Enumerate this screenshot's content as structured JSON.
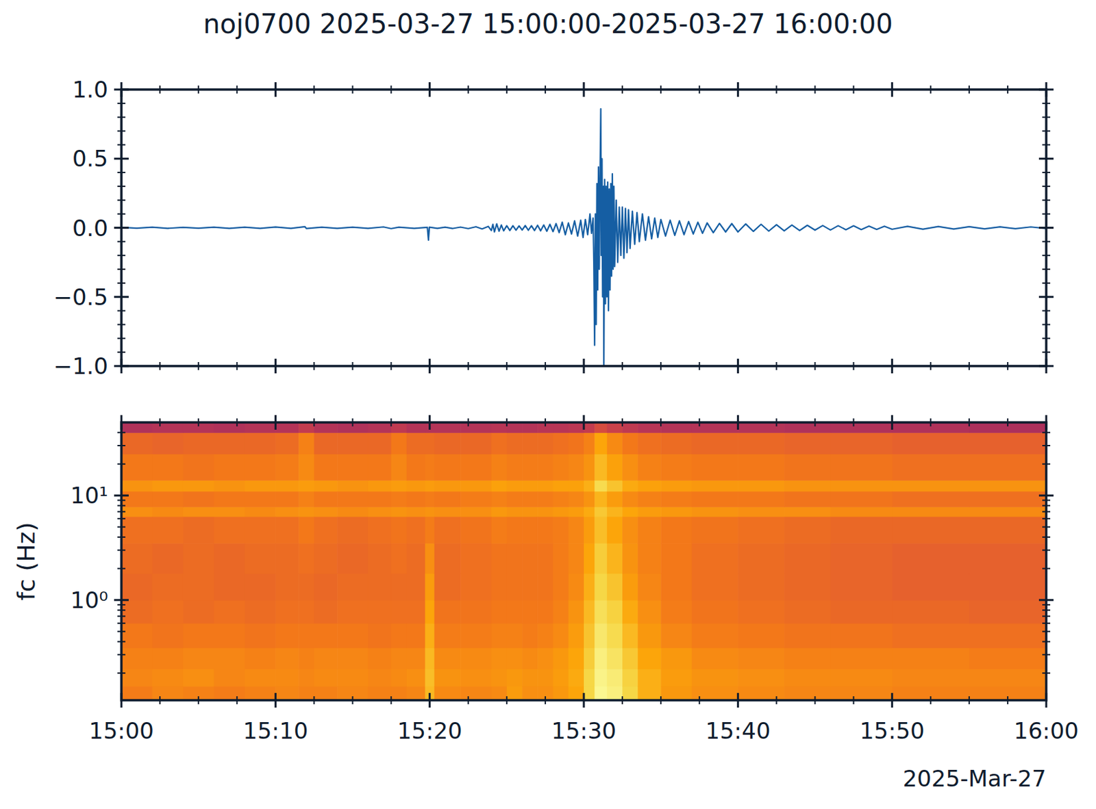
{
  "chart_data": [
    {
      "type": "line",
      "title": "noj0700 2025-03-27 15:00:00-2025-03-27 16:00:00",
      "color": "#155ea3",
      "tick_labels": "y",
      "xlim": [
        0,
        60
      ],
      "xticks": [
        {
          "value": 0,
          "label": "15:00"
        },
        {
          "value": 10,
          "label": "15:10"
        },
        {
          "value": 20,
          "label": "15:20"
        },
        {
          "value": 30,
          "label": "15:30"
        },
        {
          "value": 40,
          "label": "15:40"
        },
        {
          "value": 50,
          "label": "15:50"
        },
        {
          "value": 60,
          "label": "16:00"
        }
      ],
      "ylim": [
        -1,
        1
      ],
      "yticks": [
        {
          "value": 1,
          "label": "1.0"
        },
        {
          "value": 0.5,
          "label": "0.5"
        },
        {
          "value": 0,
          "label": "0.0"
        },
        {
          "value": -0.5,
          "label": "−0.5"
        },
        {
          "value": -1,
          "label": "−1.0"
        }
      ],
      "x": [
        0,
        1,
        2,
        3,
        4,
        5,
        6,
        7,
        8,
        9,
        10,
        11,
        11.9,
        12,
        13,
        14,
        15,
        16,
        17,
        17.5,
        18,
        19,
        19.85,
        19.92,
        19.98,
        20.5,
        21,
        21.5,
        22,
        22.5,
        23,
        23.4,
        23.8,
        24.0,
        24.1,
        24.2,
        24.35,
        24.5,
        24.65,
        24.8,
        25.0,
        25.2,
        25.4,
        25.6,
        25.8,
        26.0,
        26.2,
        26.4,
        26.6,
        26.8,
        27.0,
        27.2,
        27.4,
        27.6,
        27.8,
        28.0,
        28.2,
        28.4,
        28.6,
        28.8,
        29.0,
        29.2,
        29.4,
        29.6,
        29.8,
        29.95,
        30.1,
        30.25,
        30.4,
        30.5,
        30.6,
        30.65,
        30.7,
        30.75,
        30.8,
        30.85,
        30.9,
        30.95,
        31.0,
        31.05,
        31.1,
        31.13,
        31.18,
        31.22,
        31.28,
        31.3,
        31.35,
        31.4,
        31.45,
        31.5,
        31.55,
        31.6,
        31.65,
        31.7,
        31.75,
        31.8,
        31.85,
        31.9,
        31.95,
        32.0,
        32.1,
        32.2,
        32.3,
        32.4,
        32.5,
        32.6,
        32.7,
        32.8,
        32.9,
        33.0,
        33.15,
        33.3,
        33.45,
        33.6,
        33.8,
        34.0,
        34.2,
        34.4,
        34.6,
        34.8,
        35.0,
        35.3,
        35.6,
        35.9,
        36.2,
        36.5,
        36.8,
        37.1,
        37.4,
        37.7,
        38.0,
        38.4,
        38.8,
        39.2,
        39.6,
        40.0,
        40.5,
        41.0,
        41.5,
        42.0,
        42.5,
        43.0,
        43.5,
        44.0,
        44.5,
        45.0,
        45.5,
        46.0,
        46.5,
        47.0,
        47.5,
        48.0,
        48.5,
        49.0,
        49.5,
        50.0,
        51,
        52,
        53,
        54,
        55,
        56,
        57,
        58,
        59,
        60
      ],
      "values": [
        0.003,
        -0.003,
        0.004,
        -0.004,
        0.003,
        -0.003,
        0.004,
        -0.004,
        0.004,
        -0.004,
        0.005,
        -0.004,
        0.008,
        -0.005,
        0.004,
        -0.004,
        0.004,
        -0.004,
        0.006,
        -0.006,
        0.004,
        -0.004,
        0.003,
        -0.09,
        0.004,
        -0.004,
        0.004,
        -0.005,
        0.005,
        -0.006,
        0.007,
        -0.008,
        0.01,
        -0.02,
        0.025,
        -0.03,
        0.028,
        -0.025,
        0.02,
        -0.022,
        0.015,
        -0.02,
        0.015,
        -0.017,
        0.014,
        -0.016,
        0.016,
        -0.018,
        0.015,
        -0.02,
        0.018,
        -0.022,
        0.02,
        -0.025,
        0.025,
        -0.028,
        0.03,
        -0.035,
        0.04,
        -0.05,
        0.035,
        -0.045,
        0.05,
        -0.06,
        0.055,
        -0.07,
        0.06,
        -0.05,
        0.1,
        -0.04,
        0.07,
        -0.25,
        -0.85,
        0.1,
        -0.7,
        0.32,
        -0.45,
        0.44,
        -0.3,
        0.35,
        0.86,
        -0.2,
        0.5,
        -0.5,
        0.3,
        -1.0,
        0.35,
        -0.55,
        0.3,
        -0.5,
        0.33,
        -0.6,
        0.28,
        -0.45,
        0.32,
        -0.35,
        0.39,
        -0.3,
        0.3,
        -0.28,
        0.2,
        -0.25,
        0.15,
        -0.2,
        0.15,
        -0.22,
        0.14,
        -0.18,
        0.13,
        -0.15,
        0.12,
        -0.12,
        0.11,
        -0.1,
        0.1,
        -0.09,
        0.08,
        -0.08,
        0.07,
        -0.07,
        0.06,
        -0.06,
        0.055,
        -0.055,
        0.05,
        -0.05,
        0.045,
        -0.045,
        0.04,
        -0.04,
        0.035,
        -0.035,
        0.032,
        -0.03,
        0.03,
        -0.03,
        0.028,
        -0.026,
        0.025,
        -0.024,
        0.022,
        -0.022,
        0.02,
        -0.02,
        0.018,
        -0.017,
        0.016,
        -0.016,
        0.015,
        -0.014,
        0.014,
        -0.013,
        0.012,
        -0.012,
        0.011,
        -0.011,
        0.01,
        -0.01,
        0.009,
        -0.009,
        0.008,
        -0.008,
        0.007,
        -0.007,
        0.006,
        -0.005
      ]
    },
    {
      "type": "heatmap",
      "log": "y",
      "ylabel": "fc (Hz)",
      "xlabel": "2025-Mar-27",
      "xlim": [
        0,
        60
      ],
      "xticks": [
        {
          "value": 0,
          "label": "15:00"
        },
        {
          "value": 10,
          "label": "15:10"
        },
        {
          "value": 20,
          "label": "15:20"
        },
        {
          "value": 30,
          "label": "15:30"
        },
        {
          "value": 40,
          "label": "15:40"
        },
        {
          "value": 50,
          "label": "15:50"
        },
        {
          "value": 60,
          "label": "16:00"
        }
      ],
      "ylim": [
        0.11,
        50
      ],
      "yticks": [
        {
          "value": 1,
          "label": "10⁰"
        },
        {
          "value": 10,
          "label": "10¹"
        }
      ],
      "color_range": [
        0,
        100
      ],
      "x_edges": [
        0,
        2,
        4,
        6,
        8,
        10,
        11.5,
        12.5,
        14,
        16,
        17.5,
        18.5,
        19.7,
        20.3,
        22,
        24,
        25,
        26,
        27,
        28,
        29,
        30,
        30.7,
        31.5,
        32.5,
        33.5,
        35,
        37,
        40,
        43,
        46,
        50,
        55,
        60
      ],
      "y_edges": [
        0.11,
        0.15,
        0.22,
        0.35,
        0.6,
        1,
        1.8,
        3.5,
        6.3,
        7.8,
        11,
        14,
        25,
        40,
        50
      ],
      "cells": [
        [
          71,
          73,
          72,
          70,
          67,
          66,
          67,
          68,
          75,
          70,
          76,
          70,
          66,
          47
        ],
        [
          73,
          74,
          72,
          69,
          68,
          67,
          66,
          68,
          74,
          70,
          77,
          70,
          65,
          48
        ],
        [
          72,
          75,
          73,
          70,
          67,
          67,
          67,
          67,
          75,
          69,
          77,
          69,
          66,
          48
        ],
        [
          71,
          73,
          73,
          70,
          68,
          66,
          66,
          68,
          75,
          70,
          76,
          70,
          66,
          47
        ],
        [
          72,
          74,
          72,
          69,
          67,
          66,
          67,
          68,
          74,
          70,
          77,
          70,
          66,
          48
        ],
        [
          73,
          74,
          73,
          70,
          68,
          67,
          67,
          68,
          75,
          70,
          77,
          71,
          67,
          48
        ],
        [
          72,
          73,
          72,
          70,
          68,
          67,
          68,
          70,
          76,
          72,
          78,
          74,
          72,
          52
        ],
        [
          72,
          74,
          73,
          70,
          67,
          66,
          67,
          68,
          75,
          70,
          77,
          70,
          66,
          48
        ],
        [
          73,
          74,
          73,
          70,
          68,
          67,
          66,
          67,
          74,
          70,
          76,
          70,
          66,
          47
        ],
        [
          72,
          73,
          72,
          69,
          68,
          67,
          67,
          68,
          75,
          70,
          77,
          70,
          66,
          48
        ],
        [
          72,
          74,
          73,
          70,
          68,
          67,
          68,
          69,
          76,
          71,
          78,
          73,
          70,
          51
        ],
        [
          73,
          75,
          73,
          70,
          68,
          67,
          67,
          68,
          75,
          70,
          77,
          70,
          67,
          48
        ],
        [
          84,
          85,
          84,
          82,
          80,
          78,
          75,
          71,
          76,
          71,
          78,
          71,
          67,
          48
        ],
        [
          74,
          76,
          74,
          71,
          69,
          67,
          67,
          68,
          75,
          70,
          77,
          70,
          66,
          48
        ],
        [
          73,
          75,
          74,
          71,
          69,
          68,
          68,
          69,
          75,
          71,
          77,
          70,
          66,
          48
        ],
        [
          74,
          76,
          75,
          72,
          70,
          69,
          69,
          71,
          77,
          72,
          79,
          72,
          68,
          49
        ],
        [
          78,
          77,
          75,
          72,
          70,
          69,
          69,
          70,
          76,
          71,
          78,
          71,
          67,
          48
        ],
        [
          75,
          76,
          74,
          71,
          70,
          69,
          69,
          70,
          76,
          71,
          78,
          71,
          67,
          48
        ],
        [
          75,
          76,
          75,
          72,
          70,
          69,
          69,
          70,
          76,
          71,
          78,
          71,
          67,
          49
        ],
        [
          77,
          78,
          77,
          74,
          72,
          71,
          71,
          71,
          77,
          72,
          79,
          72,
          68,
          49
        ],
        [
          80,
          81,
          80,
          78,
          76,
          74,
          73,
          73,
          78,
          73,
          79,
          73,
          69,
          50
        ],
        [
          90,
          90,
          88,
          86,
          84,
          82,
          80,
          78,
          81,
          76,
          82,
          76,
          72,
          52
        ],
        [
          98,
          97,
          96,
          94,
          92,
          90,
          88,
          85,
          87,
          83,
          91,
          84,
          80,
          58
        ],
        [
          96,
          95,
          93,
          91,
          89,
          86,
          83,
          80,
          83,
          78,
          86,
          79,
          74,
          54
        ],
        [
          90,
          89,
          87,
          84,
          81,
          78,
          76,
          75,
          80,
          74,
          81,
          75,
          70,
          51
        ],
        [
          82,
          82,
          80,
          77,
          75,
          73,
          72,
          72,
          78,
          72,
          79,
          72,
          68,
          49
        ],
        [
          77,
          78,
          77,
          73,
          71,
          70,
          70,
          70,
          77,
          71,
          78,
          71,
          67,
          48
        ],
        [
          75,
          76,
          74,
          71,
          69,
          68,
          68,
          69,
          76,
          70,
          77,
          70,
          66,
          48
        ],
        [
          74,
          75,
          73,
          70,
          68,
          67,
          67,
          68,
          75,
          70,
          77,
          70,
          66,
          48
        ],
        [
          73,
          74,
          72,
          69,
          67,
          66,
          66,
          67,
          75,
          69,
          76,
          69,
          65,
          47
        ],
        [
          73,
          74,
          72,
          69,
          66,
          65,
          65,
          66,
          74,
          69,
          76,
          69,
          65,
          47
        ],
        [
          72,
          73,
          72,
          68,
          66,
          64,
          64,
          66,
          74,
          68,
          76,
          68,
          64,
          47
        ],
        [
          72,
          73,
          71,
          68,
          65,
          64,
          64,
          66,
          74,
          68,
          76,
          68,
          64,
          46
        ]
      ]
    }
  ]
}
